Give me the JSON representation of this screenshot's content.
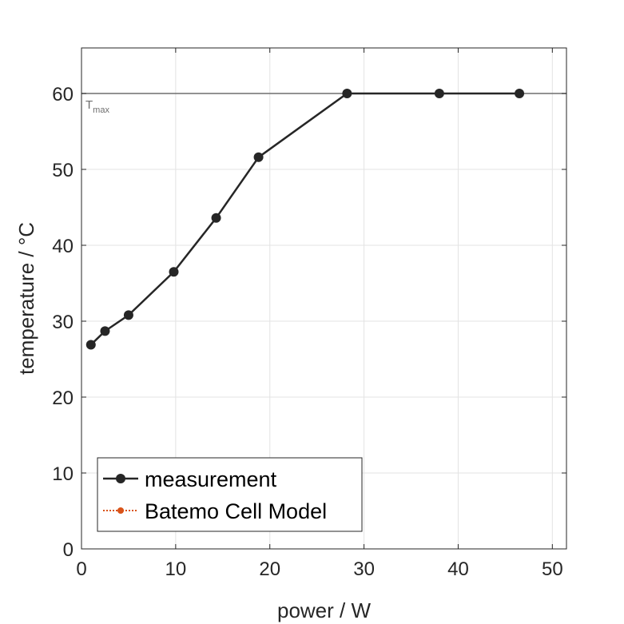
{
  "chart_data": {
    "type": "line",
    "title": "",
    "xlabel": "power / W",
    "ylabel": "temperature / °C",
    "xlim": [
      0,
      51.5
    ],
    "ylim": [
      0,
      66
    ],
    "xticks": [
      0,
      10,
      20,
      30,
      40,
      50
    ],
    "yticks": [
      0,
      10,
      20,
      30,
      40,
      50,
      60
    ],
    "grid": true,
    "legend_position": "bottom-left",
    "series": [
      {
        "name": "measurement",
        "color": "#262626",
        "line_style": "solid",
        "marker": "circle",
        "x": [
          1.0,
          2.5,
          5.0,
          9.8,
          14.3,
          18.8,
          28.2,
          38.0,
          46.5
        ],
        "y": [
          26.9,
          28.7,
          30.8,
          36.5,
          43.6,
          51.6,
          60.0,
          60.0,
          60.0
        ]
      },
      {
        "name": "Batemo Cell Model",
        "color": "#d95319",
        "line_style": "dotted",
        "marker": "circle",
        "x": [],
        "y": []
      }
    ],
    "reference_lines": [
      {
        "orientation": "horizontal",
        "y": 60,
        "label_main": "T",
        "label_sub": "max",
        "color": "#6e6e6e"
      }
    ]
  }
}
